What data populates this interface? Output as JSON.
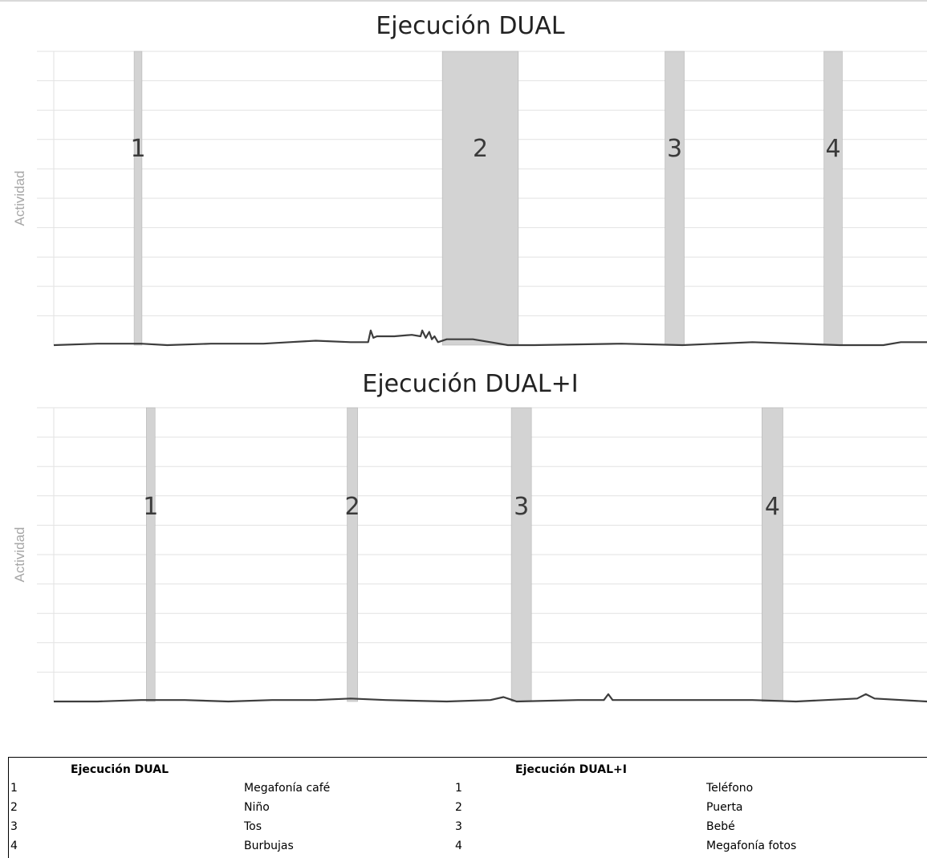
{
  "chart_data": [
    {
      "type": "line",
      "title": "Ejecución DUAL",
      "ylabel": "Actividad",
      "xlim": [
        0,
        100
      ],
      "ylim": [
        0,
        10
      ],
      "grid": true,
      "events": [
        {
          "label": "1",
          "start": 9.2,
          "end": 10.1
        },
        {
          "label": "2",
          "start": 44.5,
          "end": 53.2
        },
        {
          "label": "3",
          "start": 70.0,
          "end": 72.2
        },
        {
          "label": "4",
          "start": 88.2,
          "end": 90.3
        }
      ],
      "series": [
        {
          "x": [
            0,
            5,
            10,
            13,
            18,
            24,
            27,
            30,
            34,
            36,
            36.3,
            36.6,
            37,
            39,
            41,
            42,
            42.2,
            42.6,
            43,
            43.3,
            43.6,
            44,
            45,
            48,
            50,
            52,
            55,
            65,
            72,
            80,
            90,
            95,
            97,
            100
          ],
          "y": [
            0.0,
            0.05,
            0.05,
            0.0,
            0.05,
            0.05,
            0.1,
            0.15,
            0.1,
            0.1,
            0.5,
            0.25,
            0.3,
            0.3,
            0.35,
            0.3,
            0.5,
            0.25,
            0.45,
            0.2,
            0.3,
            0.1,
            0.2,
            0.2,
            0.1,
            0.0,
            0.0,
            0.05,
            0.0,
            0.1,
            0.0,
            0.0,
            0.1,
            0.1
          ]
        }
      ]
    },
    {
      "type": "line",
      "title": "Ejecución DUAL+I",
      "ylabel": "Actividad",
      "xlim": [
        0,
        100
      ],
      "ylim": [
        0,
        10
      ],
      "grid": true,
      "events": [
        {
          "label": "1",
          "start": 10.6,
          "end": 11.6
        },
        {
          "label": "2",
          "start": 33.6,
          "end": 34.8
        },
        {
          "label": "3",
          "start": 52.4,
          "end": 54.7
        },
        {
          "label": "4",
          "start": 81.1,
          "end": 83.5
        }
      ],
      "series": [
        {
          "x": [
            0,
            5,
            10,
            15,
            20,
            25,
            30,
            34,
            38,
            45,
            50,
            51.5,
            53,
            60,
            63,
            63.5,
            64,
            70,
            80,
            85,
            92,
            93,
            94,
            100
          ],
          "y": [
            0.0,
            0.0,
            0.05,
            0.05,
            0.0,
            0.05,
            0.05,
            0.1,
            0.05,
            0.0,
            0.05,
            0.15,
            0.0,
            0.05,
            0.05,
            0.25,
            0.05,
            0.05,
            0.05,
            0.0,
            0.1,
            0.25,
            0.1,
            0.0
          ]
        }
      ]
    }
  ],
  "legend": {
    "dual": {
      "header": "Ejecución DUAL",
      "rows": [
        {
          "num": "1",
          "name": "Megafonía café"
        },
        {
          "num": "2",
          "name": "Niño"
        },
        {
          "num": "3",
          "name": "Tos"
        },
        {
          "num": "4",
          "name": "Burbujas"
        }
      ]
    },
    "dual_i": {
      "header": "Ejecución DUAL+I",
      "rows": [
        {
          "num": "1",
          "name": "Teléfono"
        },
        {
          "num": "2",
          "name": "Puerta"
        },
        {
          "num": "3",
          "name": "Bebé"
        },
        {
          "num": "4",
          "name": "Megafonía fotos"
        }
      ]
    }
  },
  "colors": {
    "band": "#d3d3d3",
    "band_edge": "#b5b5b5",
    "line": "#3d3d3d",
    "grid": "#e2e2e2",
    "event_label": "#3a3a3a",
    "ylabel": "#a6a6a6"
  }
}
